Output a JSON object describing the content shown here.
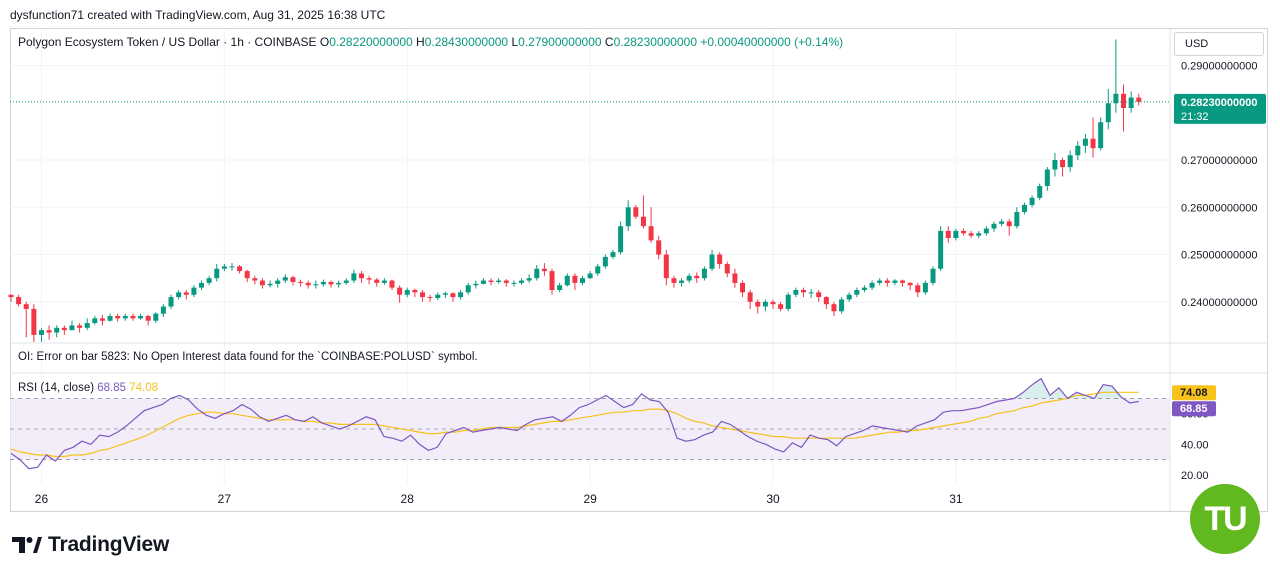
{
  "header": {
    "credit": "dysfunction71 created with TradingView.com, Aug 31, 2025 16:38 UTC"
  },
  "legend": {
    "symbol": "Polygon Ecosystem Token / US Dollar · 1h · COINBASE",
    "o_label": "O",
    "o_value": "0.28220000000",
    "h_label": "H",
    "h_value": "0.28430000000",
    "l_label": "L",
    "l_value": "0.27900000000",
    "c_label": "C",
    "c_value": "0.28230000000",
    "change": "+0.00040000000 (+0.14%)"
  },
  "currency": "USD",
  "oi_error": "OI: Error on bar 5823: No Open Interest data found for the `COINBASE:POLUSD` symbol.",
  "rsi_legend": {
    "name": "RSI (14, close)",
    "rsi_value": "68.85",
    "ma_value": "74.08"
  },
  "branding": {
    "logo_text": "TradingView",
    "badge_text": "TU"
  },
  "colors": {
    "up": "#089981",
    "down": "#f23645",
    "rsi": "#7e57c2",
    "rsi_ma": "#f7c21b",
    "band": "#ede7f6"
  },
  "chart_data": [
    {
      "type": "candlestick",
      "title": "Polygon Ecosystem Token / US Dollar · 1h · COINBASE",
      "ylim": [
        0.2315,
        0.2975
      ],
      "y_ticks": [
        {
          "value": 0.29,
          "label": "0.29000000000"
        },
        {
          "value": 0.27,
          "label": "0.27000000000"
        },
        {
          "value": 0.26,
          "label": "0.26000000000"
        },
        {
          "value": 0.25,
          "label": "0.25000000000"
        },
        {
          "value": 0.24,
          "label": "0.24000000000"
        }
      ],
      "x_ticks": [
        {
          "bar": 4,
          "label": "26"
        },
        {
          "bar": 28,
          "label": "27"
        },
        {
          "bar": 52,
          "label": "28"
        },
        {
          "bar": 76,
          "label": "29"
        },
        {
          "bar": 100,
          "label": "30"
        },
        {
          "bar": 124,
          "label": "31"
        }
      ],
      "last_price": {
        "value": 0.2823,
        "label": "0.28230000000",
        "countdown": "21:32"
      },
      "close": [
        0.241,
        0.2395,
        0.2385,
        0.233,
        0.234,
        0.2335,
        0.2345,
        0.234,
        0.235,
        0.2345,
        0.2355,
        0.2365,
        0.236,
        0.237,
        0.2365,
        0.237,
        0.2365,
        0.237,
        0.236,
        0.2375,
        0.239,
        0.241,
        0.242,
        0.2415,
        0.243,
        0.244,
        0.245,
        0.247,
        0.2475,
        0.2475,
        0.2465,
        0.245,
        0.2445,
        0.2435,
        0.2438,
        0.2445,
        0.2452,
        0.2442,
        0.244,
        0.2435,
        0.2437,
        0.2442,
        0.2437,
        0.244,
        0.2445,
        0.246,
        0.245,
        0.2447,
        0.244,
        0.2445,
        0.243,
        0.2415,
        0.2425,
        0.242,
        0.241,
        0.2408,
        0.2415,
        0.2418,
        0.241,
        0.242,
        0.2435,
        0.2438,
        0.2445,
        0.2442,
        0.2445,
        0.244,
        0.244,
        0.2445,
        0.245,
        0.247,
        0.2465,
        0.2425,
        0.2435,
        0.2455,
        0.244,
        0.245,
        0.246,
        0.2475,
        0.2495,
        0.2505,
        0.256,
        0.26,
        0.258,
        0.256,
        0.253,
        0.25,
        0.245,
        0.244,
        0.2445,
        0.2455,
        0.245,
        0.247,
        0.25,
        0.248,
        0.246,
        0.244,
        0.242,
        0.24,
        0.239,
        0.24,
        0.2395,
        0.2385,
        0.2415,
        0.2425,
        0.242,
        0.242,
        0.241,
        0.2395,
        0.238,
        0.2405,
        0.2415,
        0.2425,
        0.243,
        0.244,
        0.2445,
        0.244,
        0.2445,
        0.244,
        0.2435,
        0.242,
        0.244,
        0.247,
        0.255,
        0.2535,
        0.255,
        0.2545,
        0.254,
        0.2545,
        0.2555,
        0.2565,
        0.257,
        0.256,
        0.259,
        0.2605,
        0.262,
        0.2645,
        0.268,
        0.27,
        0.2685,
        0.271,
        0.273,
        0.2745,
        0.2725,
        0.278,
        0.282,
        0.284,
        0.281,
        0.2832,
        0.2823
      ],
      "high": [
        0.2415,
        0.2415,
        0.24,
        0.2395,
        0.2345,
        0.235,
        0.235,
        0.235,
        0.236,
        0.2355,
        0.2365,
        0.237,
        0.2372,
        0.2375,
        0.2375,
        0.2375,
        0.2375,
        0.2375,
        0.2372,
        0.2378,
        0.2395,
        0.2415,
        0.2425,
        0.2425,
        0.2435,
        0.2445,
        0.2455,
        0.248,
        0.248,
        0.2482,
        0.2478,
        0.2468,
        0.2455,
        0.245,
        0.2445,
        0.245,
        0.2458,
        0.2455,
        0.2447,
        0.2445,
        0.2445,
        0.2447,
        0.2445,
        0.2445,
        0.245,
        0.2468,
        0.2465,
        0.2455,
        0.245,
        0.245,
        0.2447,
        0.2435,
        0.243,
        0.2428,
        0.2425,
        0.2415,
        0.242,
        0.2422,
        0.242,
        0.2425,
        0.244,
        0.2445,
        0.245,
        0.245,
        0.245,
        0.2448,
        0.2445,
        0.245,
        0.2458,
        0.2478,
        0.2482,
        0.247,
        0.244,
        0.246,
        0.246,
        0.2455,
        0.2465,
        0.248,
        0.25,
        0.251,
        0.257,
        0.2615,
        0.2605,
        0.2625,
        0.26,
        0.254,
        0.251,
        0.2455,
        0.245,
        0.246,
        0.2462,
        0.2475,
        0.251,
        0.2505,
        0.2485,
        0.247,
        0.2445,
        0.2425,
        0.2405,
        0.2405,
        0.2405,
        0.24,
        0.242,
        0.243,
        0.243,
        0.2427,
        0.2425,
        0.2412,
        0.24,
        0.241,
        0.242,
        0.243,
        0.2435,
        0.2445,
        0.245,
        0.245,
        0.2448,
        0.2447,
        0.2442,
        0.244,
        0.2445,
        0.2475,
        0.256,
        0.256,
        0.2555,
        0.2555,
        0.255,
        0.255,
        0.256,
        0.257,
        0.2575,
        0.2575,
        0.26,
        0.261,
        0.2625,
        0.265,
        0.2685,
        0.2715,
        0.2705,
        0.272,
        0.274,
        0.2755,
        0.279,
        0.279,
        0.285,
        0.2955,
        0.286,
        0.2845,
        0.284
      ],
      "low": [
        0.24,
        0.239,
        0.2325,
        0.2315,
        0.2315,
        0.232,
        0.2325,
        0.233,
        0.234,
        0.2335,
        0.234,
        0.2352,
        0.235,
        0.2358,
        0.2358,
        0.236,
        0.236,
        0.2362,
        0.235,
        0.2355,
        0.2368,
        0.2385,
        0.2405,
        0.2405,
        0.241,
        0.2425,
        0.2435,
        0.2443,
        0.2465,
        0.2466,
        0.246,
        0.2442,
        0.2437,
        0.2428,
        0.243,
        0.243,
        0.244,
        0.2435,
        0.2432,
        0.2428,
        0.2428,
        0.2432,
        0.243,
        0.243,
        0.2436,
        0.244,
        0.244,
        0.2437,
        0.2432,
        0.2436,
        0.2425,
        0.2398,
        0.241,
        0.241,
        0.24,
        0.24,
        0.2404,
        0.2408,
        0.24,
        0.2405,
        0.2415,
        0.2428,
        0.2437,
        0.2435,
        0.2438,
        0.2432,
        0.2432,
        0.2436,
        0.244,
        0.2445,
        0.2455,
        0.2415,
        0.242,
        0.2432,
        0.2425,
        0.2435,
        0.2448,
        0.2455,
        0.247,
        0.249,
        0.25,
        0.255,
        0.2575,
        0.2555,
        0.2525,
        0.249,
        0.2435,
        0.243,
        0.2432,
        0.244,
        0.244,
        0.2445,
        0.2465,
        0.247,
        0.2452,
        0.243,
        0.241,
        0.2385,
        0.2375,
        0.238,
        0.2385,
        0.238,
        0.238,
        0.241,
        0.241,
        0.2408,
        0.24,
        0.2385,
        0.237,
        0.2375,
        0.24,
        0.241,
        0.242,
        0.2425,
        0.2435,
        0.2432,
        0.2435,
        0.2432,
        0.2425,
        0.241,
        0.2415,
        0.2435,
        0.2465,
        0.2525,
        0.253,
        0.254,
        0.2535,
        0.2535,
        0.254,
        0.2548,
        0.256,
        0.254,
        0.2555,
        0.2585,
        0.26,
        0.2615,
        0.2635,
        0.2665,
        0.2665,
        0.2675,
        0.27,
        0.2715,
        0.2705,
        0.272,
        0.2765,
        0.28,
        0.276,
        0.28,
        0.2815
      ]
    },
    {
      "type": "line",
      "title": "RSI (14, close)",
      "ylim": [
        14,
        86
      ],
      "y_ticks": [
        {
          "value": 60,
          "label": "60.00"
        },
        {
          "value": 40,
          "label": "40.00"
        },
        {
          "value": 20,
          "label": "20.00"
        }
      ],
      "bands": {
        "upper": 70,
        "middle": 50,
        "lower": 30
      },
      "series": [
        {
          "name": "RSI",
          "values": [
            34,
            30,
            24,
            25,
            33,
            29,
            36,
            38,
            42,
            40,
            46,
            45,
            48,
            52,
            57,
            62,
            64,
            66,
            70,
            72,
            69,
            63,
            59,
            57,
            60,
            62,
            66,
            63,
            58,
            55,
            57,
            59,
            56,
            55,
            58,
            54,
            52,
            50,
            52,
            55,
            58,
            56,
            45,
            44,
            42,
            46,
            40,
            36,
            38,
            47,
            49,
            51,
            48,
            49,
            50,
            51,
            50,
            49,
            53,
            56,
            57,
            58,
            55,
            59,
            64,
            66,
            69,
            72,
            68,
            64,
            66,
            73,
            69,
            68,
            61,
            44,
            42,
            43,
            46,
            48,
            55,
            53,
            49,
            45,
            42,
            40,
            37,
            35,
            41,
            38,
            46,
            44,
            43,
            39,
            45,
            47,
            49,
            52,
            51,
            50,
            49,
            48,
            52,
            54,
            56,
            61,
            62,
            62,
            63,
            64,
            66,
            68,
            69,
            70,
            74,
            79,
            83,
            72,
            77,
            70,
            74,
            72,
            70,
            79,
            78,
            71,
            67,
            68
          ]
        },
        {
          "name": "RSI-based MA",
          "values": [
            37,
            35,
            34,
            33,
            33,
            32,
            32,
            33,
            33,
            34,
            36,
            37,
            39,
            41,
            43,
            45,
            48,
            51,
            54,
            57,
            59,
            60,
            61,
            61,
            60,
            60,
            59,
            58,
            57,
            56,
            56,
            56,
            56,
            55,
            55,
            54,
            54,
            53,
            53,
            53,
            53,
            53,
            52,
            51,
            50,
            49,
            48,
            47,
            47,
            48,
            48,
            49,
            49,
            50,
            51,
            51,
            51,
            51,
            52,
            53,
            54,
            55,
            55,
            56,
            57,
            58,
            59,
            60,
            61,
            61,
            62,
            62,
            63,
            63,
            62,
            60,
            57,
            55,
            54,
            52,
            51,
            50,
            49,
            48,
            47,
            46,
            45,
            45,
            44,
            44,
            44,
            44,
            44,
            44,
            44,
            44,
            45,
            46,
            47,
            48,
            48,
            49,
            49,
            50,
            51,
            52,
            53,
            54,
            55,
            57,
            58,
            60,
            61,
            62,
            64,
            65,
            67,
            68,
            69,
            70,
            72,
            72,
            73,
            74,
            74,
            74,
            74,
            74
          ]
        }
      ],
      "last_values": {
        "rsi": "68.85",
        "ma": "74.08"
      }
    }
  ]
}
